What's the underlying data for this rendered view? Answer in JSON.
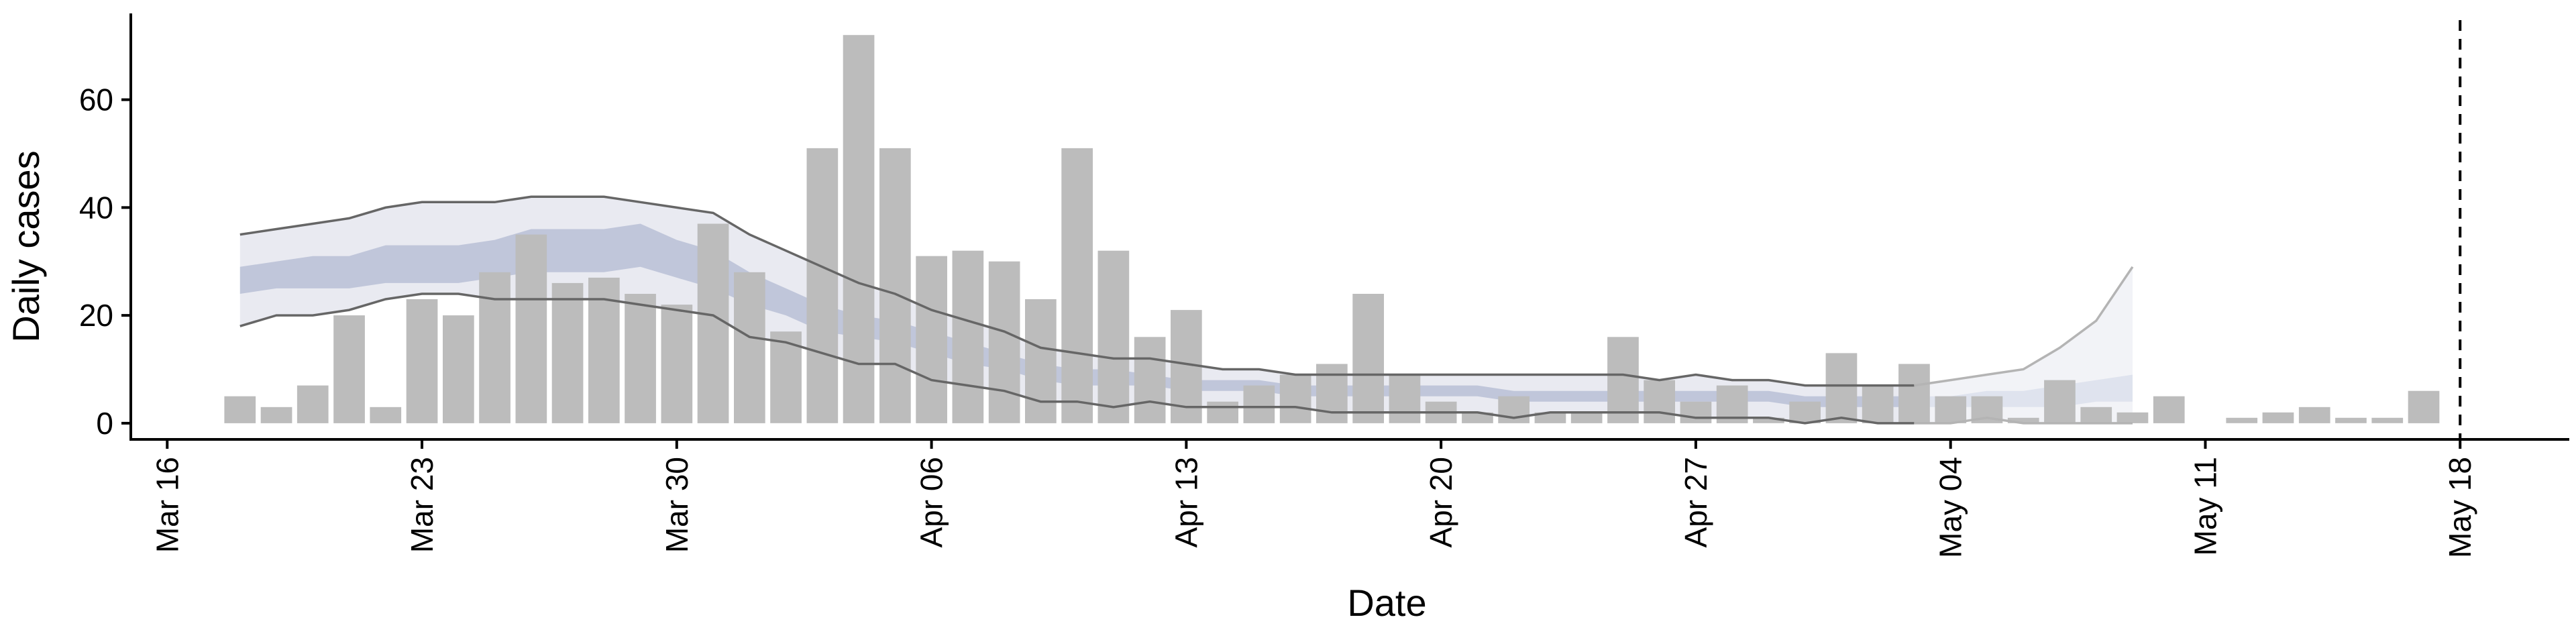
{
  "chart_data": {
    "type": "bar",
    "xlabel": "Date",
    "ylabel": "Daily cases",
    "ylim": [
      -3,
      76
    ],
    "y_ticks": [
      0,
      20,
      40,
      60
    ],
    "y_tick_labels": [
      "0",
      "20",
      "40",
      "60"
    ],
    "x_range": [
      "2020-03-15",
      "2020-05-21"
    ],
    "x_ticks": [
      "2020-03-16",
      "2020-03-23",
      "2020-03-30",
      "2020-04-06",
      "2020-04-13",
      "2020-04-20",
      "2020-04-27",
      "2020-05-04",
      "2020-05-11",
      "2020-05-18"
    ],
    "x_tick_labels": [
      "Mar 16",
      "Mar 23",
      "Mar 30",
      "Apr 06",
      "Apr 13",
      "Apr 20",
      "Apr 27",
      "May 04",
      "May 11",
      "May 18"
    ],
    "bars_start_date": "2020-03-18",
    "bars": [
      5,
      3,
      7,
      20,
      3,
      23,
      20,
      28,
      35,
      26,
      27,
      24,
      22,
      37,
      28,
      17,
      51,
      72,
      51,
      31,
      32,
      30,
      23,
      51,
      32,
      16,
      21,
      4,
      7,
      9,
      11,
      24,
      9,
      4,
      2,
      5,
      2,
      2,
      16,
      8,
      4,
      7,
      1,
      4,
      13,
      7,
      11,
      5,
      5,
      1,
      8,
      3,
      2,
      5,
      0,
      1,
      2,
      3,
      1,
      1,
      6
    ],
    "bands_start_date": "2020-03-18",
    "outer_upper": [
      35,
      36,
      37,
      38,
      40,
      41,
      41,
      41,
      42,
      42,
      42,
      41,
      40,
      39,
      35,
      32,
      29,
      26,
      24,
      21,
      19,
      17,
      14,
      13,
      12,
      12,
      11,
      10,
      10,
      9,
      9,
      9,
      9,
      9,
      9,
      9,
      9,
      9,
      9,
      8,
      9,
      8,
      8,
      7,
      7,
      7,
      7,
      8,
      9,
      10,
      14,
      19,
      29
    ],
    "outer_lower": [
      18,
      20,
      20,
      21,
      23,
      24,
      24,
      23,
      23,
      23,
      23,
      22,
      21,
      20,
      16,
      15,
      13,
      11,
      11,
      8,
      7,
      6,
      4,
      4,
      3,
      4,
      3,
      3,
      3,
      3,
      2,
      2,
      2,
      2,
      2,
      1,
      2,
      2,
      2,
      2,
      1,
      1,
      1,
      0,
      1,
      0,
      0,
      0,
      1,
      0,
      0,
      0,
      0
    ],
    "inner_upper": [
      29,
      30,
      31,
      31,
      33,
      33,
      33,
      34,
      36,
      36,
      36,
      37,
      34,
      32,
      28,
      25,
      22,
      20,
      19,
      17,
      15,
      13,
      11,
      10,
      10,
      9,
      8,
      8,
      8,
      7,
      7,
      7,
      7,
      7,
      7,
      6,
      6,
      6,
      6,
      6,
      6,
      6,
      6,
      5,
      5,
      5,
      5,
      5,
      6,
      6,
      7,
      8,
      9
    ],
    "inner_lower": [
      24,
      25,
      25,
      25,
      26,
      26,
      26,
      27,
      28,
      28,
      28,
      29,
      27,
      25,
      22,
      20,
      17,
      16,
      15,
      13,
      11,
      10,
      8,
      7,
      7,
      7,
      6,
      6,
      6,
      5,
      5,
      5,
      5,
      5,
      5,
      4,
      4,
      4,
      4,
      4,
      4,
      4,
      4,
      3,
      3,
      3,
      3,
      3,
      3,
      3,
      3,
      4,
      4
    ],
    "forecast_shading_start": "2020-05-03",
    "vertical_dashed_line": "2020-05-18",
    "grid": false,
    "colors": {
      "bars": "#bcbcbc",
      "outer_band": "#e9eaf1",
      "inner_band": "#b8c0d6",
      "band_edges": "#666666",
      "forecast_outer": "#f2f3f7",
      "forecast_inner": "#dfe3ee",
      "forecast_edges": "#b4b4b4",
      "axes": "#000000"
    }
  }
}
